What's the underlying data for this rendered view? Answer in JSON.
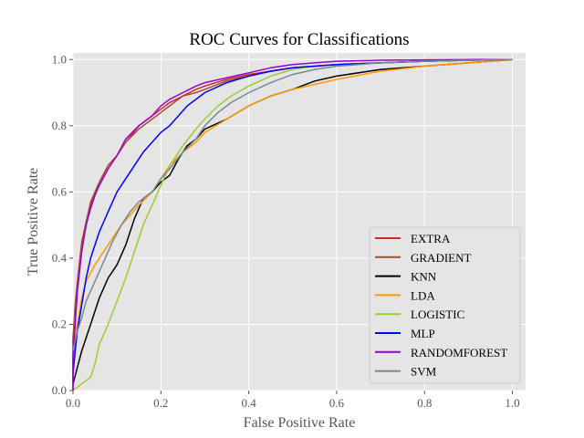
{
  "chart_data": {
    "type": "line",
    "title": "ROC Curves for Classifications",
    "xlabel": "False Positive Rate",
    "ylabel": "True Positive Rate",
    "xlim": [
      0,
      1.03
    ],
    "ylim": [
      0,
      1.02
    ],
    "xticks": [
      "0.0",
      "0.2",
      "0.4",
      "0.6",
      "0.8",
      "1.0"
    ],
    "yticks": [
      "0.0",
      "0.2",
      "0.4",
      "0.6",
      "0.8",
      "1.0"
    ],
    "grid": true,
    "legend": "lower-right",
    "series": [
      {
        "name": "EXTRA",
        "color": "#d62728",
        "x": [
          0,
          0,
          0.005,
          0.01,
          0.015,
          0.02,
          0.03,
          0.04,
          0.05,
          0.06,
          0.08,
          0.1,
          0.12,
          0.15,
          0.18,
          0.2,
          0.22,
          0.25,
          0.28,
          0.3,
          0.35,
          0.4,
          0.45,
          0.5,
          0.55,
          0.6,
          0.7,
          0.8,
          0.9,
          1.0
        ],
        "y": [
          0,
          0.15,
          0.25,
          0.32,
          0.38,
          0.44,
          0.5,
          0.56,
          0.6,
          0.63,
          0.68,
          0.71,
          0.75,
          0.8,
          0.83,
          0.85,
          0.87,
          0.89,
          0.91,
          0.92,
          0.94,
          0.955,
          0.965,
          0.975,
          0.98,
          0.985,
          0.99,
          0.995,
          0.998,
          1.0
        ]
      },
      {
        "name": "GRADIENT",
        "color": "#a0522d",
        "x": [
          0,
          0,
          0.005,
          0.01,
          0.015,
          0.02,
          0.03,
          0.04,
          0.05,
          0.06,
          0.08,
          0.1,
          0.12,
          0.15,
          0.18,
          0.2,
          0.22,
          0.25,
          0.28,
          0.3,
          0.35,
          0.4,
          0.45,
          0.5,
          0.55,
          0.6,
          0.7,
          0.8,
          0.9,
          1.0
        ],
        "y": [
          0,
          0.16,
          0.26,
          0.33,
          0.39,
          0.45,
          0.51,
          0.57,
          0.6,
          0.63,
          0.68,
          0.71,
          0.75,
          0.79,
          0.82,
          0.84,
          0.86,
          0.89,
          0.9,
          0.91,
          0.935,
          0.95,
          0.965,
          0.975,
          0.98,
          0.985,
          0.99,
          0.995,
          0.998,
          1.0
        ]
      },
      {
        "name": "KNN",
        "color": "#000000",
        "x": [
          0,
          0.02,
          0.04,
          0.06,
          0.08,
          0.1,
          0.12,
          0.14,
          0.16,
          0.18,
          0.2,
          0.22,
          0.24,
          0.26,
          0.28,
          0.3,
          0.35,
          0.4,
          0.45,
          0.5,
          0.55,
          0.6,
          0.7,
          0.8,
          0.9,
          1.0
        ],
        "y": [
          0.02,
          0.12,
          0.2,
          0.28,
          0.34,
          0.38,
          0.44,
          0.52,
          0.58,
          0.6,
          0.63,
          0.65,
          0.7,
          0.74,
          0.76,
          0.79,
          0.82,
          0.86,
          0.89,
          0.91,
          0.935,
          0.95,
          0.97,
          0.98,
          0.99,
          1.0
        ]
      },
      {
        "name": "LDA",
        "color": "#ff9900",
        "x": [
          0,
          0.01,
          0.02,
          0.03,
          0.05,
          0.07,
          0.09,
          0.11,
          0.13,
          0.15,
          0.18,
          0.2,
          0.22,
          0.25,
          0.28,
          0.3,
          0.35,
          0.4,
          0.45,
          0.5,
          0.55,
          0.6,
          0.7,
          0.8,
          0.9,
          1.0
        ],
        "y": [
          0.1,
          0.2,
          0.28,
          0.33,
          0.38,
          0.42,
          0.46,
          0.5,
          0.53,
          0.56,
          0.6,
          0.64,
          0.68,
          0.72,
          0.75,
          0.78,
          0.82,
          0.86,
          0.89,
          0.91,
          0.925,
          0.94,
          0.965,
          0.98,
          0.99,
          1.0
        ]
      },
      {
        "name": "LOGISTIC",
        "color": "#9acd32",
        "x": [
          0,
          0.02,
          0.04,
          0.05,
          0.06,
          0.08,
          0.1,
          0.12,
          0.14,
          0.16,
          0.18,
          0.2,
          0.22,
          0.25,
          0.28,
          0.3,
          0.33,
          0.36,
          0.4,
          0.45,
          0.5,
          0.55,
          0.6,
          0.7,
          0.8,
          0.9,
          1.0
        ],
        "y": [
          0,
          0.02,
          0.04,
          0.08,
          0.14,
          0.2,
          0.27,
          0.34,
          0.42,
          0.5,
          0.56,
          0.62,
          0.68,
          0.74,
          0.79,
          0.82,
          0.86,
          0.89,
          0.92,
          0.95,
          0.97,
          0.98,
          0.985,
          0.99,
          0.995,
          0.998,
          1.0
        ]
      },
      {
        "name": "MLP",
        "color": "#0000ff",
        "x": [
          0,
          0.005,
          0.01,
          0.02,
          0.03,
          0.04,
          0.06,
          0.08,
          0.1,
          0.12,
          0.14,
          0.16,
          0.18,
          0.2,
          0.22,
          0.24,
          0.26,
          0.28,
          0.3,
          0.35,
          0.4,
          0.45,
          0.5,
          0.6,
          0.7,
          0.8,
          0.9,
          1.0
        ],
        "y": [
          0.05,
          0.12,
          0.18,
          0.26,
          0.34,
          0.4,
          0.48,
          0.54,
          0.6,
          0.64,
          0.68,
          0.72,
          0.75,
          0.78,
          0.8,
          0.83,
          0.86,
          0.88,
          0.9,
          0.93,
          0.95,
          0.965,
          0.975,
          0.985,
          0.99,
          0.995,
          0.998,
          1.0
        ]
      },
      {
        "name": "RANDOMFOREST",
        "color": "#9400d3",
        "x": [
          0,
          0,
          0.005,
          0.01,
          0.015,
          0.02,
          0.03,
          0.04,
          0.05,
          0.06,
          0.08,
          0.1,
          0.12,
          0.15,
          0.18,
          0.2,
          0.22,
          0.25,
          0.28,
          0.3,
          0.35,
          0.4,
          0.45,
          0.5,
          0.55,
          0.6,
          0.7,
          0.8,
          0.9,
          1.0
        ],
        "y": [
          0,
          0.1,
          0.2,
          0.3,
          0.36,
          0.42,
          0.5,
          0.55,
          0.59,
          0.62,
          0.67,
          0.71,
          0.76,
          0.8,
          0.83,
          0.86,
          0.88,
          0.9,
          0.92,
          0.93,
          0.945,
          0.96,
          0.975,
          0.985,
          0.99,
          0.995,
          0.998,
          0.999,
          1.0,
          1.0
        ]
      },
      {
        "name": "SVM",
        "color": "#778899",
        "x": [
          0,
          0.01,
          0.02,
          0.03,
          0.05,
          0.07,
          0.09,
          0.11,
          0.13,
          0.15,
          0.18,
          0.2,
          0.22,
          0.25,
          0.28,
          0.3,
          0.33,
          0.36,
          0.4,
          0.45,
          0.5,
          0.55,
          0.6,
          0.7,
          0.8,
          0.9,
          1.0
        ],
        "y": [
          0.12,
          0.18,
          0.22,
          0.27,
          0.33,
          0.39,
          0.45,
          0.5,
          0.54,
          0.57,
          0.6,
          0.64,
          0.67,
          0.72,
          0.76,
          0.8,
          0.84,
          0.87,
          0.9,
          0.93,
          0.955,
          0.97,
          0.98,
          0.99,
          0.995,
          0.998,
          1.0
        ]
      }
    ]
  }
}
